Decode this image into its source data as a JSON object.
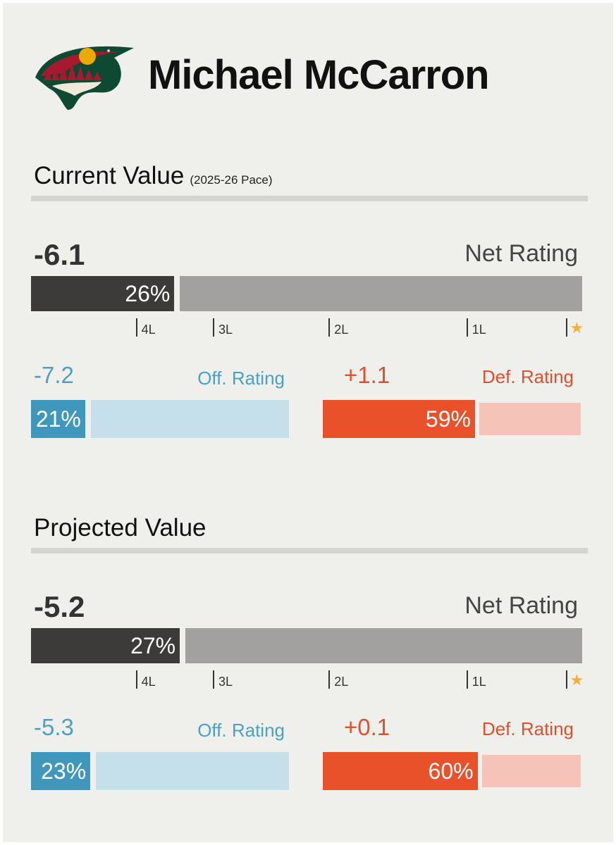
{
  "player": {
    "name": "Michael McCarron",
    "team_logo": "minnesota-wild-logo"
  },
  "colors": {
    "net_fill": "#3d3b3a",
    "net_track": "#a3a1a0",
    "off_fill": "#3f97bb",
    "off_track": "#c5e0ea",
    "off_text": "#4aa1c3",
    "def_fill": "#e9512a",
    "def_track": "#f6c3b8",
    "def_text": "#e0502c",
    "star": "#f2b134"
  },
  "chart_data": [
    {
      "type": "bar",
      "title": "Current Value",
      "subtitle": "(2025-26 Pace)",
      "net": {
        "value": "-6.1",
        "label": "Net Rating",
        "percentile": 26,
        "percentile_text": "26%"
      },
      "tiers": [
        {
          "label": "4L",
          "percentile": 19
        },
        {
          "label": "3L",
          "percentile": 33
        },
        {
          "label": "2L",
          "percentile": 54
        },
        {
          "label": "1L",
          "percentile": 79
        },
        {
          "label": "★",
          "percentile": 97
        }
      ],
      "offense": {
        "value": "-7.2",
        "label": "Off. Rating",
        "percentile": 21,
        "percentile_text": "21%"
      },
      "defense": {
        "value": "+1.1",
        "label": "Def. Rating",
        "percentile": 59,
        "percentile_text": "59%"
      }
    },
    {
      "type": "bar",
      "title": "Projected Value",
      "subtitle": "",
      "net": {
        "value": "-5.2",
        "label": "Net Rating",
        "percentile": 27,
        "percentile_text": "27%"
      },
      "tiers": [
        {
          "label": "4L",
          "percentile": 19
        },
        {
          "label": "3L",
          "percentile": 33
        },
        {
          "label": "2L",
          "percentile": 54
        },
        {
          "label": "1L",
          "percentile": 79
        },
        {
          "label": "★",
          "percentile": 97
        }
      ],
      "offense": {
        "value": "-5.3",
        "label": "Off. Rating",
        "percentile": 23,
        "percentile_text": "23%"
      },
      "defense": {
        "value": "+0.1",
        "label": "Def. Rating",
        "percentile": 60,
        "percentile_text": "60%"
      }
    }
  ]
}
